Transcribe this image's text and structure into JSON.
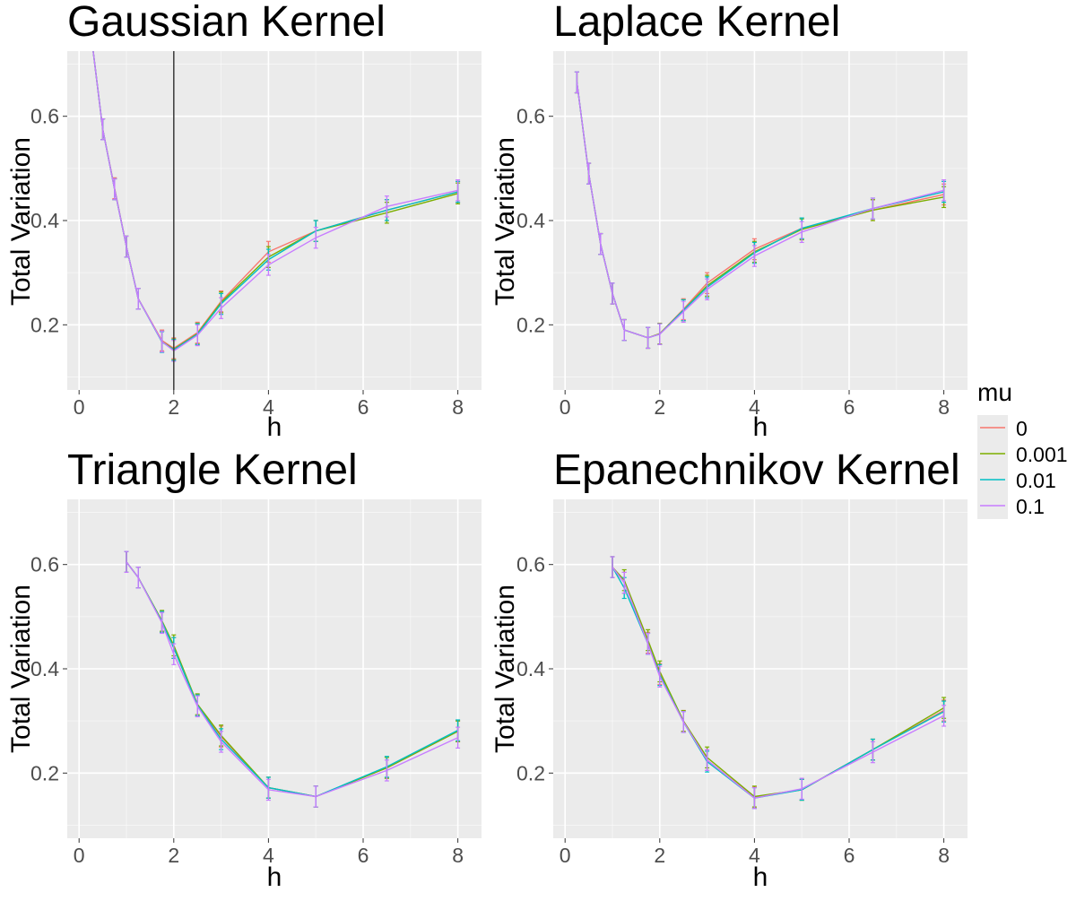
{
  "chart_data": [
    {
      "type": "line",
      "title": "Gaussian Kernel",
      "xlabel": "h",
      "ylabel": "Total Variation",
      "xlim": [
        -0.25,
        8.5
      ],
      "ylim": [
        0.075,
        0.725
      ],
      "xticks": [
        0,
        2,
        4,
        6,
        8
      ],
      "xtick_labels": [
        "0",
        "2",
        "4",
        "6",
        "8"
      ],
      "yticks": [
        0.2,
        0.4,
        0.6
      ],
      "ytick_labels": [
        "0.2",
        "0.4",
        "0.6"
      ],
      "vline": 2,
      "error_half_width": 0.02,
      "series": [
        {
          "name": "0",
          "color": "#F8766D",
          "x": [
            0.25,
            0.5,
            0.75,
            1,
            1.25,
            1.75,
            2,
            2.5,
            3,
            4,
            5,
            6.5,
            8
          ],
          "y": [
            0.76,
            0.575,
            0.462,
            0.35,
            0.25,
            0.17,
            0.155,
            0.185,
            0.245,
            0.34,
            0.38,
            0.42,
            0.455
          ]
        },
        {
          "name": "0.001",
          "color": "#7CAE00",
          "x": [
            0.25,
            0.5,
            0.75,
            1,
            1.25,
            1.75,
            2,
            2.5,
            3,
            4,
            5,
            6.5,
            8
          ],
          "y": [
            0.76,
            0.575,
            0.46,
            0.35,
            0.25,
            0.168,
            0.153,
            0.183,
            0.243,
            0.33,
            0.38,
            0.415,
            0.452
          ]
        },
        {
          "name": "0.01",
          "color": "#00BFC4",
          "x": [
            0.25,
            0.5,
            0.75,
            1,
            1.25,
            1.75,
            2,
            2.5,
            3,
            4,
            5,
            6.5,
            8
          ],
          "y": [
            0.76,
            0.575,
            0.46,
            0.35,
            0.25,
            0.167,
            0.152,
            0.182,
            0.24,
            0.325,
            0.38,
            0.42,
            0.455
          ]
        },
        {
          "name": "0.1",
          "color": "#C77CFF",
          "x": [
            0.25,
            0.5,
            0.75,
            1,
            1.25,
            1.75,
            2,
            2.5,
            3,
            4,
            5,
            6.5,
            8
          ],
          "y": [
            0.76,
            0.575,
            0.46,
            0.35,
            0.25,
            0.168,
            0.15,
            0.18,
            0.232,
            0.315,
            0.367,
            0.427,
            0.458
          ]
        }
      ]
    },
    {
      "type": "line",
      "title": "Laplace Kernel",
      "xlabel": "h",
      "ylabel": "Total Variation",
      "xlim": [
        -0.25,
        8.5
      ],
      "ylim": [
        0.075,
        0.725
      ],
      "xticks": [
        0,
        2,
        4,
        6,
        8
      ],
      "xtick_labels": [
        "0",
        "2",
        "4",
        "6",
        "8"
      ],
      "yticks": [
        0.2,
        0.4,
        0.6
      ],
      "ytick_labels": [
        "0.2",
        "0.4",
        "0.6"
      ],
      "error_half_width": 0.02,
      "series": [
        {
          "name": "0",
          "color": "#F8766D",
          "x": [
            0.25,
            0.5,
            0.75,
            1,
            1.25,
            1.75,
            2,
            2.5,
            3,
            4,
            5,
            6.5,
            8
          ],
          "y": [
            0.665,
            0.49,
            0.355,
            0.26,
            0.19,
            0.175,
            0.183,
            0.23,
            0.28,
            0.345,
            0.385,
            0.42,
            0.45
          ]
        },
        {
          "name": "0.001",
          "color": "#7CAE00",
          "x": [
            0.25,
            0.5,
            0.75,
            1,
            1.25,
            1.75,
            2,
            2.5,
            3,
            4,
            5,
            6.5,
            8
          ],
          "y": [
            0.665,
            0.49,
            0.355,
            0.26,
            0.19,
            0.175,
            0.183,
            0.228,
            0.275,
            0.34,
            0.383,
            0.42,
            0.445
          ]
        },
        {
          "name": "0.01",
          "color": "#00BFC4",
          "x": [
            0.25,
            0.5,
            0.75,
            1,
            1.25,
            1.75,
            2,
            2.5,
            3,
            4,
            5,
            6.5,
            8
          ],
          "y": [
            0.665,
            0.49,
            0.355,
            0.26,
            0.19,
            0.175,
            0.182,
            0.228,
            0.272,
            0.338,
            0.385,
            0.423,
            0.455
          ]
        },
        {
          "name": "0.1",
          "color": "#C77CFF",
          "x": [
            0.25,
            0.5,
            0.75,
            1,
            1.25,
            1.75,
            2,
            2.5,
            3,
            4,
            5,
            6.5,
            8
          ],
          "y": [
            0.665,
            0.49,
            0.355,
            0.26,
            0.19,
            0.175,
            0.182,
            0.225,
            0.268,
            0.332,
            0.378,
            0.423,
            0.458
          ]
        }
      ]
    },
    {
      "type": "line",
      "title": "Triangle Kernel",
      "xlabel": "h",
      "ylabel": "Total Variation",
      "xlim": [
        -0.25,
        8.5
      ],
      "ylim": [
        0.075,
        0.725
      ],
      "xticks": [
        0,
        2,
        4,
        6,
        8
      ],
      "xtick_labels": [
        "0",
        "2",
        "4",
        "6",
        "8"
      ],
      "yticks": [
        0.2,
        0.4,
        0.6
      ],
      "ytick_labels": [
        "0.2",
        "0.4",
        "0.6"
      ],
      "error_half_width": 0.02,
      "series": [
        {
          "name": "0",
          "color": "#F8766D",
          "x": [
            1,
            1.25,
            1.75,
            2,
            2.5,
            3,
            4,
            5,
            6.5,
            8
          ],
          "y": [
            0.605,
            0.575,
            0.49,
            0.44,
            0.33,
            0.27,
            0.172,
            0.155,
            0.21,
            0.28
          ]
        },
        {
          "name": "0.001",
          "color": "#7CAE00",
          "x": [
            1,
            1.25,
            1.75,
            2,
            2.5,
            3,
            4,
            5,
            6.5,
            8
          ],
          "y": [
            0.605,
            0.575,
            0.492,
            0.445,
            0.332,
            0.272,
            0.172,
            0.155,
            0.21,
            0.28
          ]
        },
        {
          "name": "0.01",
          "color": "#00BFC4",
          "x": [
            1,
            1.25,
            1.75,
            2,
            2.5,
            3,
            4,
            5,
            6.5,
            8
          ],
          "y": [
            0.605,
            0.575,
            0.49,
            0.44,
            0.33,
            0.265,
            0.172,
            0.155,
            0.212,
            0.282
          ]
        },
        {
          "name": "0.1",
          "color": "#C77CFF",
          "x": [
            1,
            1.25,
            1.75,
            2,
            2.5,
            3,
            4,
            5,
            6.5,
            8
          ],
          "y": [
            0.605,
            0.575,
            0.488,
            0.428,
            0.328,
            0.26,
            0.168,
            0.155,
            0.205,
            0.268
          ]
        }
      ]
    },
    {
      "type": "line",
      "title": "Epanechnikov Kernel",
      "xlabel": "h",
      "ylabel": "Total Variation",
      "xlim": [
        -0.25,
        8.5
      ],
      "ylim": [
        0.075,
        0.725
      ],
      "xticks": [
        0,
        2,
        4,
        6,
        8
      ],
      "xtick_labels": [
        "0",
        "2",
        "4",
        "6",
        "8"
      ],
      "yticks": [
        0.2,
        0.4,
        0.6
      ],
      "ytick_labels": [
        "0.2",
        "0.4",
        "0.6"
      ],
      "error_half_width": 0.02,
      "series": [
        {
          "name": "0",
          "color": "#F8766D",
          "x": [
            1,
            1.25,
            1.75,
            2,
            2.5,
            3,
            4,
            5,
            6.5,
            8
          ],
          "y": [
            0.595,
            0.565,
            0.45,
            0.39,
            0.3,
            0.225,
            0.153,
            0.168,
            0.245,
            0.32
          ]
        },
        {
          "name": "0.001",
          "color": "#7CAE00",
          "x": [
            1,
            1.25,
            1.75,
            2,
            2.5,
            3,
            4,
            5,
            6.5,
            8
          ],
          "y": [
            0.595,
            0.57,
            0.455,
            0.395,
            0.3,
            0.23,
            0.155,
            0.168,
            0.245,
            0.325
          ]
        },
        {
          "name": "0.01",
          "color": "#00BFC4",
          "x": [
            1,
            1.25,
            1.75,
            2,
            2.5,
            3,
            4,
            5,
            6.5,
            8
          ],
          "y": [
            0.595,
            0.555,
            0.448,
            0.388,
            0.298,
            0.222,
            0.152,
            0.168,
            0.245,
            0.318
          ]
        },
        {
          "name": "0.1",
          "color": "#C77CFF",
          "x": [
            1,
            1.25,
            1.75,
            2,
            2.5,
            3,
            4,
            5,
            6.5,
            8
          ],
          "y": [
            0.595,
            0.565,
            0.448,
            0.385,
            0.298,
            0.225,
            0.152,
            0.17,
            0.24,
            0.31
          ]
        }
      ]
    }
  ],
  "legend": {
    "title": "mu",
    "position": "right",
    "items": [
      {
        "label": "0",
        "color": "#F8766D"
      },
      {
        "label": "0.001",
        "color": "#7CAE00"
      },
      {
        "label": "0.01",
        "color": "#00BFC4"
      },
      {
        "label": "0.1",
        "color": "#C77CFF"
      }
    ]
  },
  "style": {
    "panel_background": "#EBEBEB",
    "grid_major": "#FFFFFF",
    "vline_color": "#444444"
  }
}
